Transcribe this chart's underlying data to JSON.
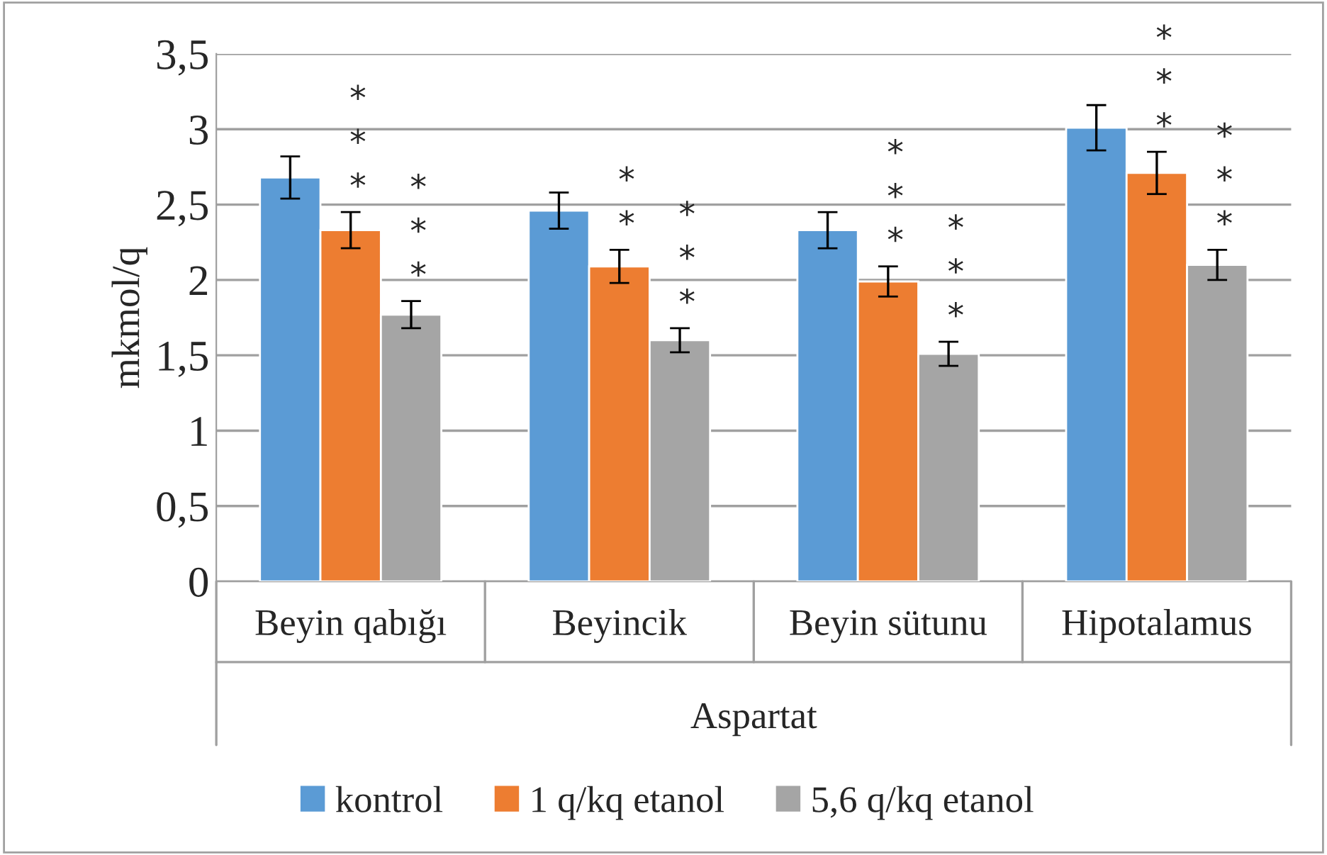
{
  "chart_data": {
    "type": "bar",
    "categories": [
      "Beyin qabığı",
      "Beyincik",
      "Beyin sütunu",
      "Hipotalamus"
    ],
    "xlabel": "Aspartat",
    "ylabel": "mkmol/q",
    "series": [
      {
        "name": "kontrol",
        "color": "#5b9bd5",
        "values": [
          2.68,
          2.46,
          2.33,
          3.01
        ],
        "errors": [
          0.14,
          0.12,
          0.12,
          0.15
        ]
      },
      {
        "name": "1 q/kq etanol",
        "color": "#ed7d31",
        "values": [
          2.33,
          2.09,
          1.99,
          2.71
        ],
        "errors": [
          0.12,
          0.11,
          0.1,
          0.14
        ],
        "value_labels": [
          "*\n*\n*",
          "*\n*",
          "*\n*\n*",
          "*\n*\n*"
        ]
      },
      {
        "name": "5,6 q/kq etanol",
        "color": "#a5a5a5",
        "values": [
          1.77,
          1.6,
          1.51,
          2.1
        ],
        "errors": [
          0.09,
          0.08,
          0.08,
          0.1
        ],
        "value_labels": [
          "*\n*\n*",
          "*\n*\n*",
          "*\n*\n*",
          "*\n*\n*"
        ]
      }
    ],
    "ylim": [
      0,
      3.5
    ],
    "yticks": [
      0,
      {
        "value": 0.5,
        "label": "0,5"
      },
      1,
      {
        "value": 1.5,
        "label": "1,5"
      },
      2,
      {
        "value": 2.5,
        "label": "2,5"
      },
      3,
      {
        "value": 3.5,
        "label": "3,5"
      }
    ],
    "grid": "y",
    "legend": "bottom"
  }
}
